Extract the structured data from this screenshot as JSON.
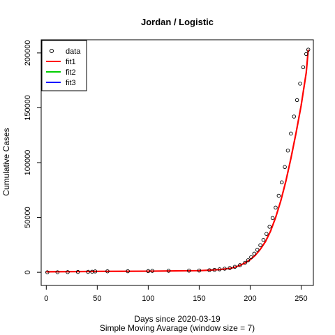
{
  "chart_data": {
    "type": "scatter",
    "title": "Jordan / Logistic",
    "xlabel": "Days since 2020-03-19",
    "subtitle": "Simple Moving Avarage (window size = 7)",
    "ylabel": "Cumulative Cases",
    "xlim": [
      -5,
      262
    ],
    "ylim": [
      -12000,
      212000
    ],
    "xticks": [
      0,
      50,
      100,
      150,
      200,
      250
    ],
    "yticks": [
      0,
      50000,
      100000,
      150000,
      200000
    ],
    "legend_position": "top-left",
    "legend": [
      {
        "label": "data",
        "kind": "point",
        "color": "#000000"
      },
      {
        "label": "fit1",
        "kind": "line",
        "color": "#ff0000"
      },
      {
        "label": "fit2",
        "kind": "line",
        "color": "#00cd00"
      },
      {
        "label": "fit3",
        "kind": "line",
        "color": "#0000ff"
      }
    ],
    "data_points": {
      "x": [
        1,
        11,
        21,
        31,
        41,
        45,
        48,
        60,
        80,
        100,
        104,
        120,
        140,
        150,
        160,
        165,
        170,
        175,
        180,
        185,
        190,
        195,
        198,
        201,
        204,
        207,
        210,
        213,
        216,
        219,
        222,
        225,
        228,
        231,
        234,
        237,
        240,
        243,
        246,
        249,
        252,
        255,
        257
      ],
      "y": [
        0,
        50,
        150,
        300,
        400,
        500,
        800,
        900,
        1000,
        1100,
        1300,
        1400,
        1500,
        1600,
        1900,
        2200,
        2700,
        3300,
        3900,
        5000,
        6500,
        8700,
        11000,
        13800,
        17000,
        20500,
        24700,
        29500,
        35000,
        41500,
        49500,
        59000,
        69800,
        82000,
        96000,
        111000,
        126500,
        142000,
        157000,
        172000,
        187000,
        199000,
        203000
      ]
    },
    "fit1": {
      "color": "#ff0000",
      "x": [
        0,
        50,
        100,
        150,
        160,
        170,
        180,
        185,
        190,
        195,
        200,
        205,
        210,
        215,
        220,
        225,
        230,
        235,
        240,
        245,
        250,
        255,
        257
      ],
      "y": [
        500,
        800,
        1000,
        1500,
        1900,
        2500,
        3500,
        4600,
        6300,
        8500,
        11500,
        15500,
        21000,
        28000,
        37500,
        50000,
        65000,
        83000,
        104000,
        127000,
        152000,
        182000,
        203000
      ]
    }
  }
}
